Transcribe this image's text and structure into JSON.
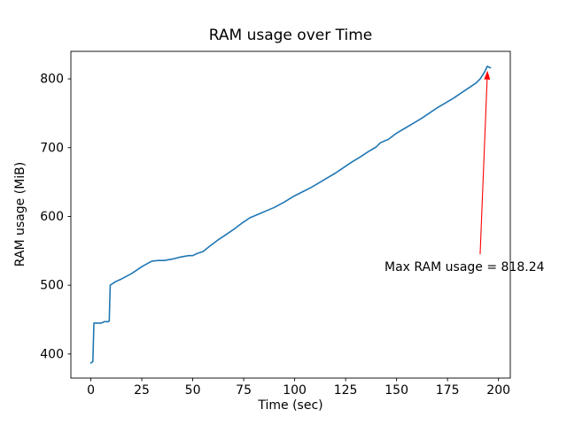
{
  "figure": {
    "background": "#ffffff"
  },
  "chart_data": {
    "type": "line",
    "title": "RAM usage over Time",
    "xlabel": "Time (sec)",
    "ylabel": "RAM usage (MiB)",
    "xlim": [
      -9.8,
      205.8
    ],
    "ylim": [
      365,
      840
    ],
    "xticks": [
      0,
      25,
      50,
      75,
      100,
      125,
      150,
      175,
      200
    ],
    "yticks": [
      400,
      500,
      600,
      700,
      800
    ],
    "grid": false,
    "legend": "none",
    "axis_color": "#000000",
    "series": [
      {
        "name": "RAM usage (MiB)",
        "color": "#1f77b4",
        "x": [
          0,
          1,
          1.5,
          5,
          6,
          6.5,
          8.5,
          9,
          9.5,
          12,
          15,
          20,
          25,
          28,
          30,
          33,
          36,
          40,
          44,
          48,
          50,
          52,
          55,
          58,
          62,
          66,
          70,
          74,
          78,
          82,
          86,
          90,
          95,
          100,
          104,
          108,
          112,
          116,
          120,
          124,
          128,
          132,
          136,
          140,
          142,
          146,
          150,
          154,
          158,
          162,
          166,
          170,
          174,
          178,
          182,
          186,
          189,
          191,
          193,
          194.5,
          196
        ],
        "y": [
          387,
          389,
          445,
          445,
          446,
          447,
          447,
          448,
          500,
          505,
          509,
          517,
          527,
          532,
          535,
          536,
          536,
          538,
          541,
          543,
          543,
          546,
          549,
          556,
          565,
          573,
          581,
          590,
          598,
          603,
          608,
          613,
          621,
          630,
          636,
          642,
          649,
          656,
          663,
          671,
          679,
          686,
          694,
          701,
          707,
          712,
          721,
          728,
          735,
          742,
          750,
          758,
          765,
          772,
          780,
          788,
          794,
          800,
          809,
          818.24,
          816
        ]
      }
    ],
    "annotation": {
      "text": "Max RAM usage = 818.24",
      "max_value": 818.24,
      "color": "#ff0000",
      "text_xy": [
        144,
        521
      ],
      "arrow_from": [
        191,
        545
      ],
      "arrow_to": [
        194.6,
        812
      ]
    }
  }
}
